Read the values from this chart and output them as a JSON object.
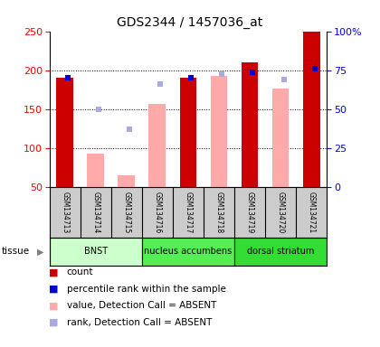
{
  "title": "GDS2344 / 1457036_at",
  "samples": [
    "GSM134713",
    "GSM134714",
    "GSM134715",
    "GSM134716",
    "GSM134717",
    "GSM134718",
    "GSM134719",
    "GSM134720",
    "GSM134721"
  ],
  "present": [
    true,
    false,
    false,
    false,
    true,
    false,
    true,
    false,
    true
  ],
  "bar_values": [
    190,
    93,
    65,
    157,
    190,
    193,
    210,
    177,
    250
  ],
  "rank_values": [
    190,
    150,
    125,
    182,
    190,
    195,
    197,
    188,
    202
  ],
  "tissues": [
    {
      "label": "BNST",
      "start": 0,
      "end": 3,
      "color": "#ccffcc"
    },
    {
      "label": "nucleus accumbens",
      "start": 3,
      "end": 6,
      "color": "#55ee55"
    },
    {
      "label": "dorsal striatum",
      "start": 6,
      "end": 9,
      "color": "#33dd33"
    }
  ],
  "ylim_left": [
    50,
    250
  ],
  "ylim_right": [
    0,
    100
  ],
  "yticks_left": [
    50,
    100,
    150,
    200,
    250
  ],
  "yticks_right": [
    0,
    25,
    50,
    75,
    100
  ],
  "bar_color_present": "#cc0000",
  "bar_color_absent": "#ffaaaa",
  "rank_color_present": "#0000cc",
  "rank_color_absent": "#aaaadd",
  "bg_color": "#ffffff",
  "sample_bg": "#cccccc",
  "legend_items": [
    {
      "color": "#cc0000",
      "label": "count"
    },
    {
      "color": "#0000cc",
      "label": "percentile rank within the sample"
    },
    {
      "color": "#ffaaaa",
      "label": "value, Detection Call = ABSENT"
    },
    {
      "color": "#aaaadd",
      "label": "rank, Detection Call = ABSENT"
    }
  ]
}
